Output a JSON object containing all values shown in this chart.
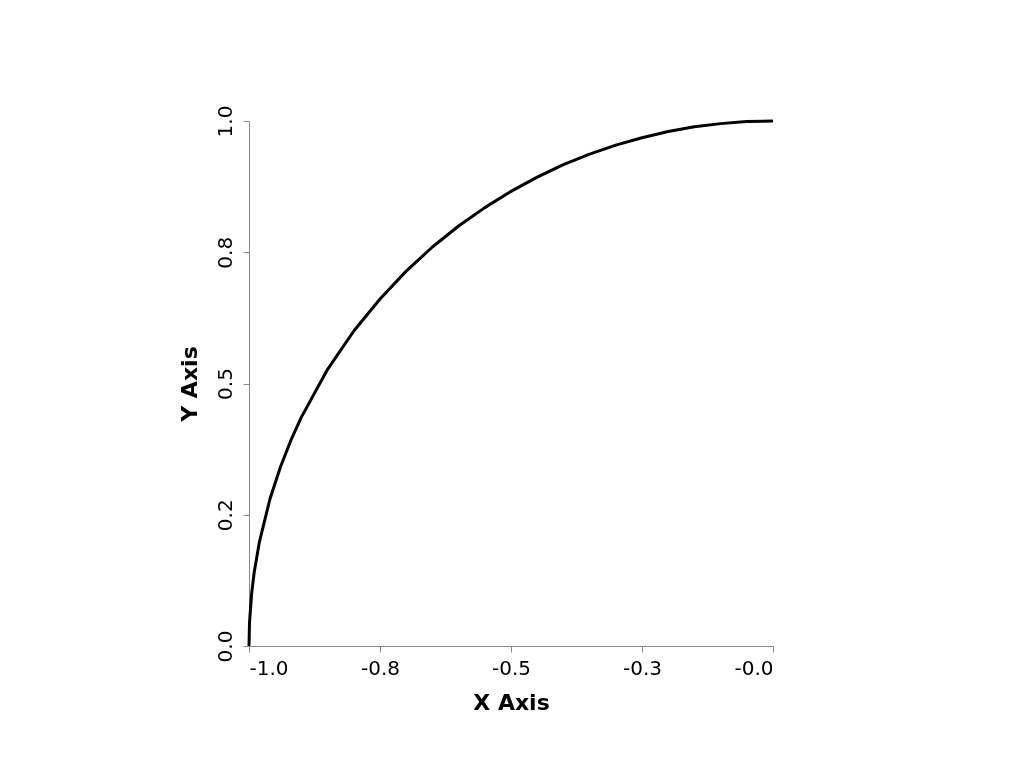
{
  "chart_data": {
    "type": "line",
    "xlabel": "X Axis",
    "ylabel": "Y Axis",
    "x": [
      -1,
      -0.999,
      -0.995,
      -0.99,
      -0.98,
      -0.96,
      -0.94,
      -0.92,
      -0.9,
      -0.85,
      -0.8,
      -0.75,
      -0.7,
      -0.65,
      -0.6,
      -0.55,
      -0.5,
      -0.45,
      -0.4,
      -0.35,
      -0.3,
      -0.25,
      -0.2,
      -0.15,
      -0.1,
      -0.05,
      0
    ],
    "series": [
      {
        "color": "#000000",
        "values": [
          0,
          0.045,
          0.1,
          0.141,
          0.199,
          0.28,
          0.341,
          0.392,
          0.436,
          0.527,
          0.6,
          0.661,
          0.714,
          0.76,
          0.8,
          0.835,
          0.866,
          0.893,
          0.917,
          0.937,
          0.954,
          0.968,
          0.98,
          0.989,
          0.995,
          0.999,
          1
        ]
      }
    ],
    "xlim": [
      -1,
      0
    ],
    "xticks": [
      {
        "value": -1,
        "label": "-1.0"
      },
      {
        "value": -0.75,
        "label": "-0.8"
      },
      {
        "value": -0.5,
        "label": "-0.5"
      },
      {
        "value": -0.25,
        "label": "-0.3"
      },
      {
        "value": 0,
        "label": "-0.0"
      }
    ],
    "ylim": [
      0,
      1
    ],
    "yticks": [
      {
        "value": 0,
        "label": "0.0"
      },
      {
        "value": 0.25,
        "label": "0.2"
      },
      {
        "value": 0.5,
        "label": "0.5"
      },
      {
        "value": 0.75,
        "label": "0.8"
      },
      {
        "value": 1,
        "label": "1.0"
      }
    ],
    "grid": false,
    "marker": "none",
    "line_style": "solid"
  }
}
